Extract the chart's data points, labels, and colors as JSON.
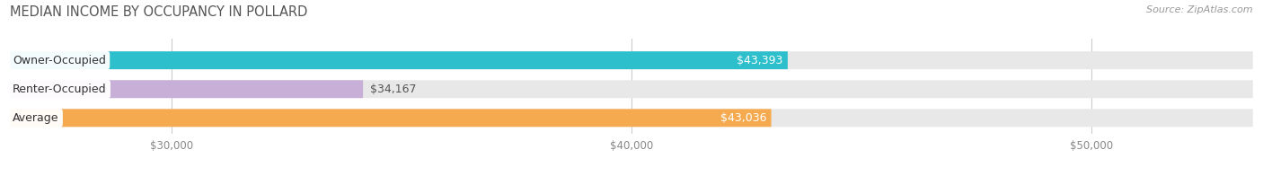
{
  "title": "MEDIAN INCOME BY OCCUPANCY IN POLLARD",
  "source": "Source: ZipAtlas.com",
  "categories": [
    "Owner-Occupied",
    "Renter-Occupied",
    "Average"
  ],
  "values": [
    43393,
    34167,
    43036
  ],
  "labels": [
    "$43,393",
    "$34,167",
    "$43,036"
  ],
  "bar_colors": [
    "#2dbfcc",
    "#c8afd8",
    "#f5aa50"
  ],
  "bar_bg_color": "#e8e8e8",
  "label_inside": [
    true,
    false,
    true
  ],
  "label_colors_inside": [
    "white",
    "#777777",
    "white"
  ],
  "xlim_min": 26500,
  "xlim_max": 53500,
  "xticks": [
    30000,
    40000,
    50000
  ],
  "xtick_labels": [
    "$30,000",
    "$40,000",
    "$50,000"
  ],
  "figsize": [
    14.06,
    1.96
  ],
  "dpi": 100
}
